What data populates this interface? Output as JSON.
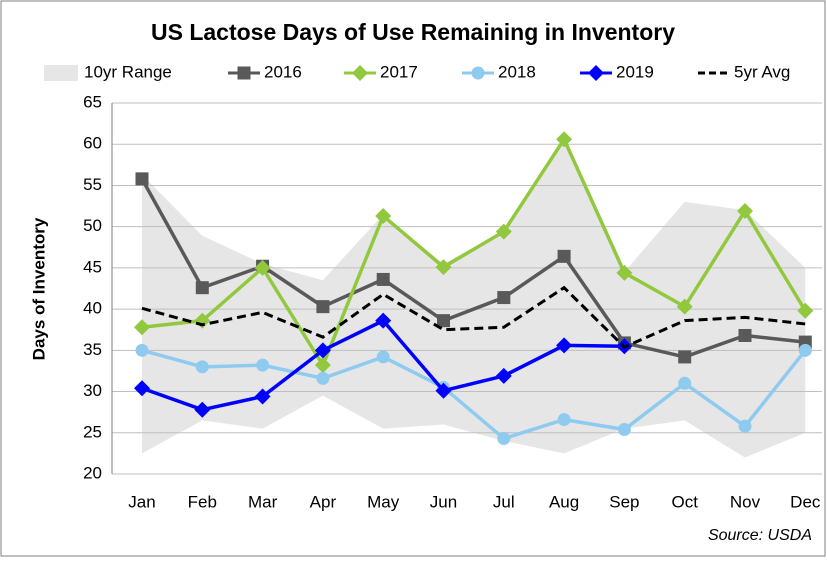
{
  "chart_data": {
    "type": "line",
    "title": "US Lactose Days of Use Remaining in Inventory",
    "y_label": "Days of Inventory",
    "source": "Source: USDA",
    "categories": [
      "Jan",
      "Feb",
      "Mar",
      "Apr",
      "May",
      "Jun",
      "Jul",
      "Aug",
      "Sep",
      "Oct",
      "Nov",
      "Dec"
    ],
    "range": {
      "name": "10yr Range",
      "color": "#e6e6e6",
      "upper": [
        56.3,
        48.9,
        45.5,
        43.5,
        51.5,
        45.5,
        49.5,
        60.5,
        44.5,
        53,
        52,
        45
      ],
      "lower": [
        22.5,
        26.5,
        25.5,
        29.5,
        25.5,
        26,
        24,
        22.5,
        25.5,
        26.5,
        22,
        25
      ]
    },
    "series": [
      {
        "name": "2016",
        "color": "#595959",
        "marker": "square",
        "values": [
          55.8,
          42.6,
          45.2,
          40.3,
          43.6,
          38.6,
          41.4,
          46.4,
          35.9,
          34.2,
          36.8,
          36.0
        ]
      },
      {
        "name": "2017",
        "color": "#92c83e",
        "marker": "diamond",
        "values": [
          37.8,
          38.6,
          45.0,
          33.2,
          51.3,
          45.1,
          49.4,
          60.6,
          44.4,
          40.3,
          51.9,
          39.8
        ]
      },
      {
        "name": "2018",
        "color": "#8ecbef",
        "marker": "circle",
        "values": [
          35.0,
          33.0,
          33.2,
          31.6,
          34.2,
          30.5,
          24.3,
          26.6,
          25.4,
          31.0,
          25.8,
          35.0
        ]
      },
      {
        "name": "2019",
        "color": "#0000ff",
        "marker": "diamond",
        "values": [
          30.4,
          27.8,
          29.4,
          35.0,
          38.6,
          30.1,
          31.9,
          35.6,
          35.5,
          null,
          null,
          null
        ]
      },
      {
        "name": "5yr Avg",
        "color": "#000000",
        "marker": "none",
        "dash": true,
        "values": [
          40.1,
          38.1,
          39.6,
          36.6,
          41.8,
          37.5,
          37.8,
          42.6,
          35.4,
          38.6,
          39.0,
          38.2
        ]
      }
    ],
    "ylim": [
      20,
      65
    ],
    "yticks": [
      20,
      25,
      30,
      35,
      40,
      45,
      50,
      55,
      60,
      65
    ],
    "grid": true,
    "legend": "top"
  }
}
